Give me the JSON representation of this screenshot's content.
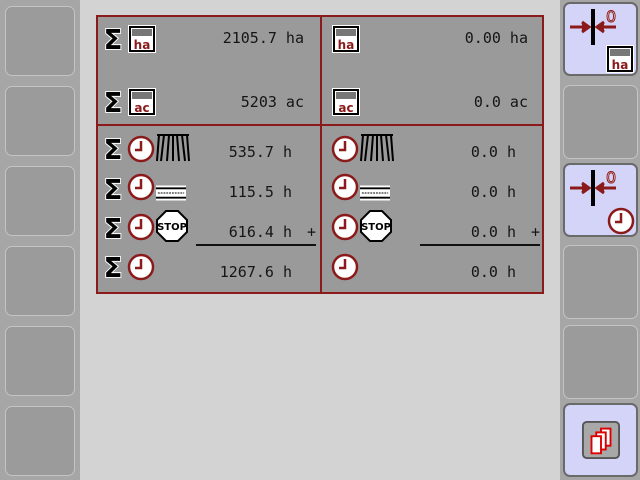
{
  "totals": {
    "area_ha": "2105.7 ha",
    "area_ac": "5203 ac",
    "time_spreading": "535.7 h",
    "time_transport": "115.5 h",
    "time_stop": "616.4 h",
    "time_total": "1267.6 h"
  },
  "trip": {
    "area_ha": "0.00 ha",
    "area_ac": "0.0 ac",
    "time_spreading": "0.0 h",
    "time_transport": "0.0 h",
    "time_stop": "0.0 h",
    "time_total": "0.0 h"
  },
  "sum_sign": "+",
  "icons": {
    "sigma": "sigma-icon",
    "ha": "hectare-icon",
    "ac": "acre-icon",
    "clock": "clock-icon",
    "spread": "spreading-fan-icon",
    "road": "road-icon",
    "stop": "stop-sign-icon",
    "reset": "reset-counter-icon",
    "copy": "copy-pages-icon"
  },
  "colors": {
    "accent": "#8b1a1a",
    "button_active": "#d4d4f8",
    "panel": "#9a9a9a"
  }
}
